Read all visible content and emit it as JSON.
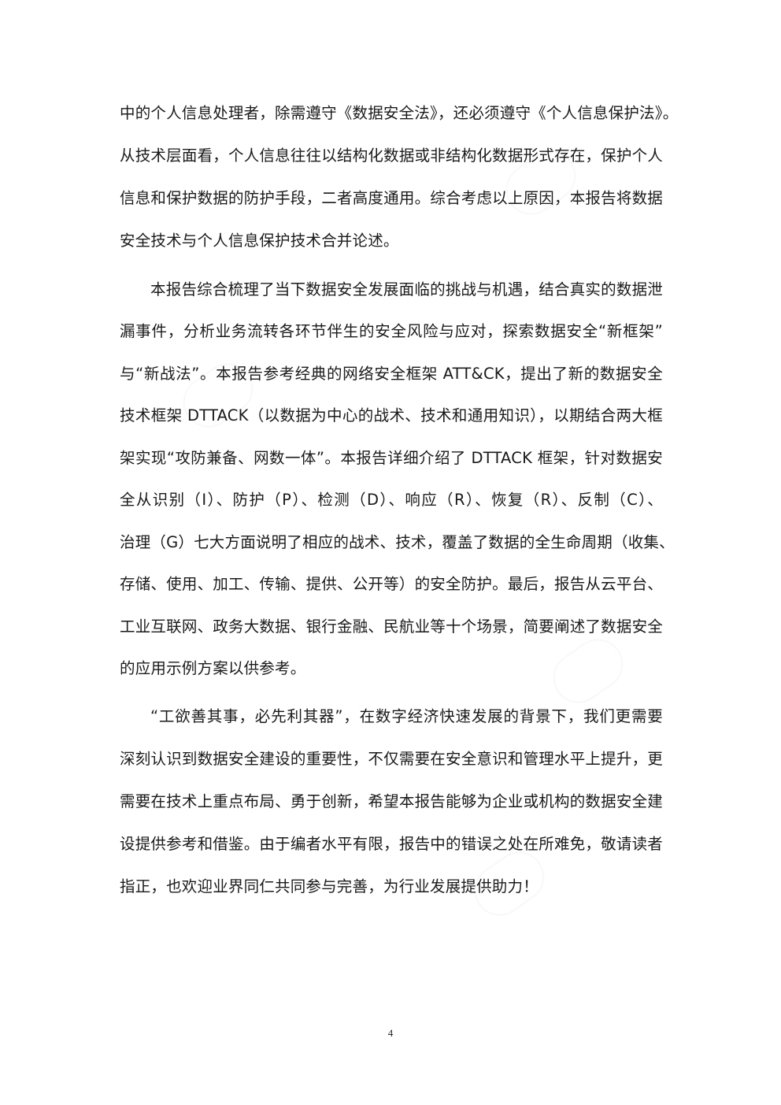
{
  "body": {
    "lines": [
      "中的个人信息处理者，除需遵守《数据安全法》，还必须遵守《个人信息保护法》。",
      "从技术层面看，个人信息往往以结构化数据或非结构化数据形式存在，保护个人",
      "信息和保护数据的防护手段，二者高度通用。综合考虑以上原因，本报告将数据",
      "安全技术与个人信息保护技术合并论述。",
      "本报告综合梳理了当下数据安全发展面临的挑战与机遇，结合真实的数据泄",
      "漏事件，分析业务流转各环节伴生的安全风险与应对，探索数据安全“新框架”",
      "与“新战法”。本报告参考经典的网络安全框架 ATT&CK，提出了新的数据安全",
      "技术框架 DTTACK（以数据为中心的战术、技术和通用知识），以期结合两大框",
      "架实现“攻防兼备、网数一体”。本报告详细介绍了 DTTACK 框架，针对数据安",
      "全从识别（I）、防护（P）、检测（D）、响应（R）、恢复（R）、反制（C）、",
      "治理（G）七大方面说明了相应的战术、技术，覆盖了数据的全生命周期（收集、",
      "存储、使用、加工、传输、提供、公开等）的安全防护。最后，报告从云平台、",
      "工业互联网、政务大数据、银行金融、民航业等十个场景，简要阐述了数据安全",
      "的应用示例方案以供参考。",
      "“工欲善其事，必先利其器”，在数字经济快速发展的背景下，我们更需要",
      "深刻认识到数据安全建设的重要性，不仅需要在安全意识和管理水平上提升，更",
      "需要在技术上重点布局、勇于创新，希望本报告能够为企业或机构的数据安全建",
      "设提供参考和借鉴。由于编者水平有限，报告中的错误之处在所难免，敬请读者",
      "指正，也欢迎业界同仁共同参与完善，为行业发展提供助力！"
    ]
  },
  "footer": {
    "page_number": "4"
  }
}
